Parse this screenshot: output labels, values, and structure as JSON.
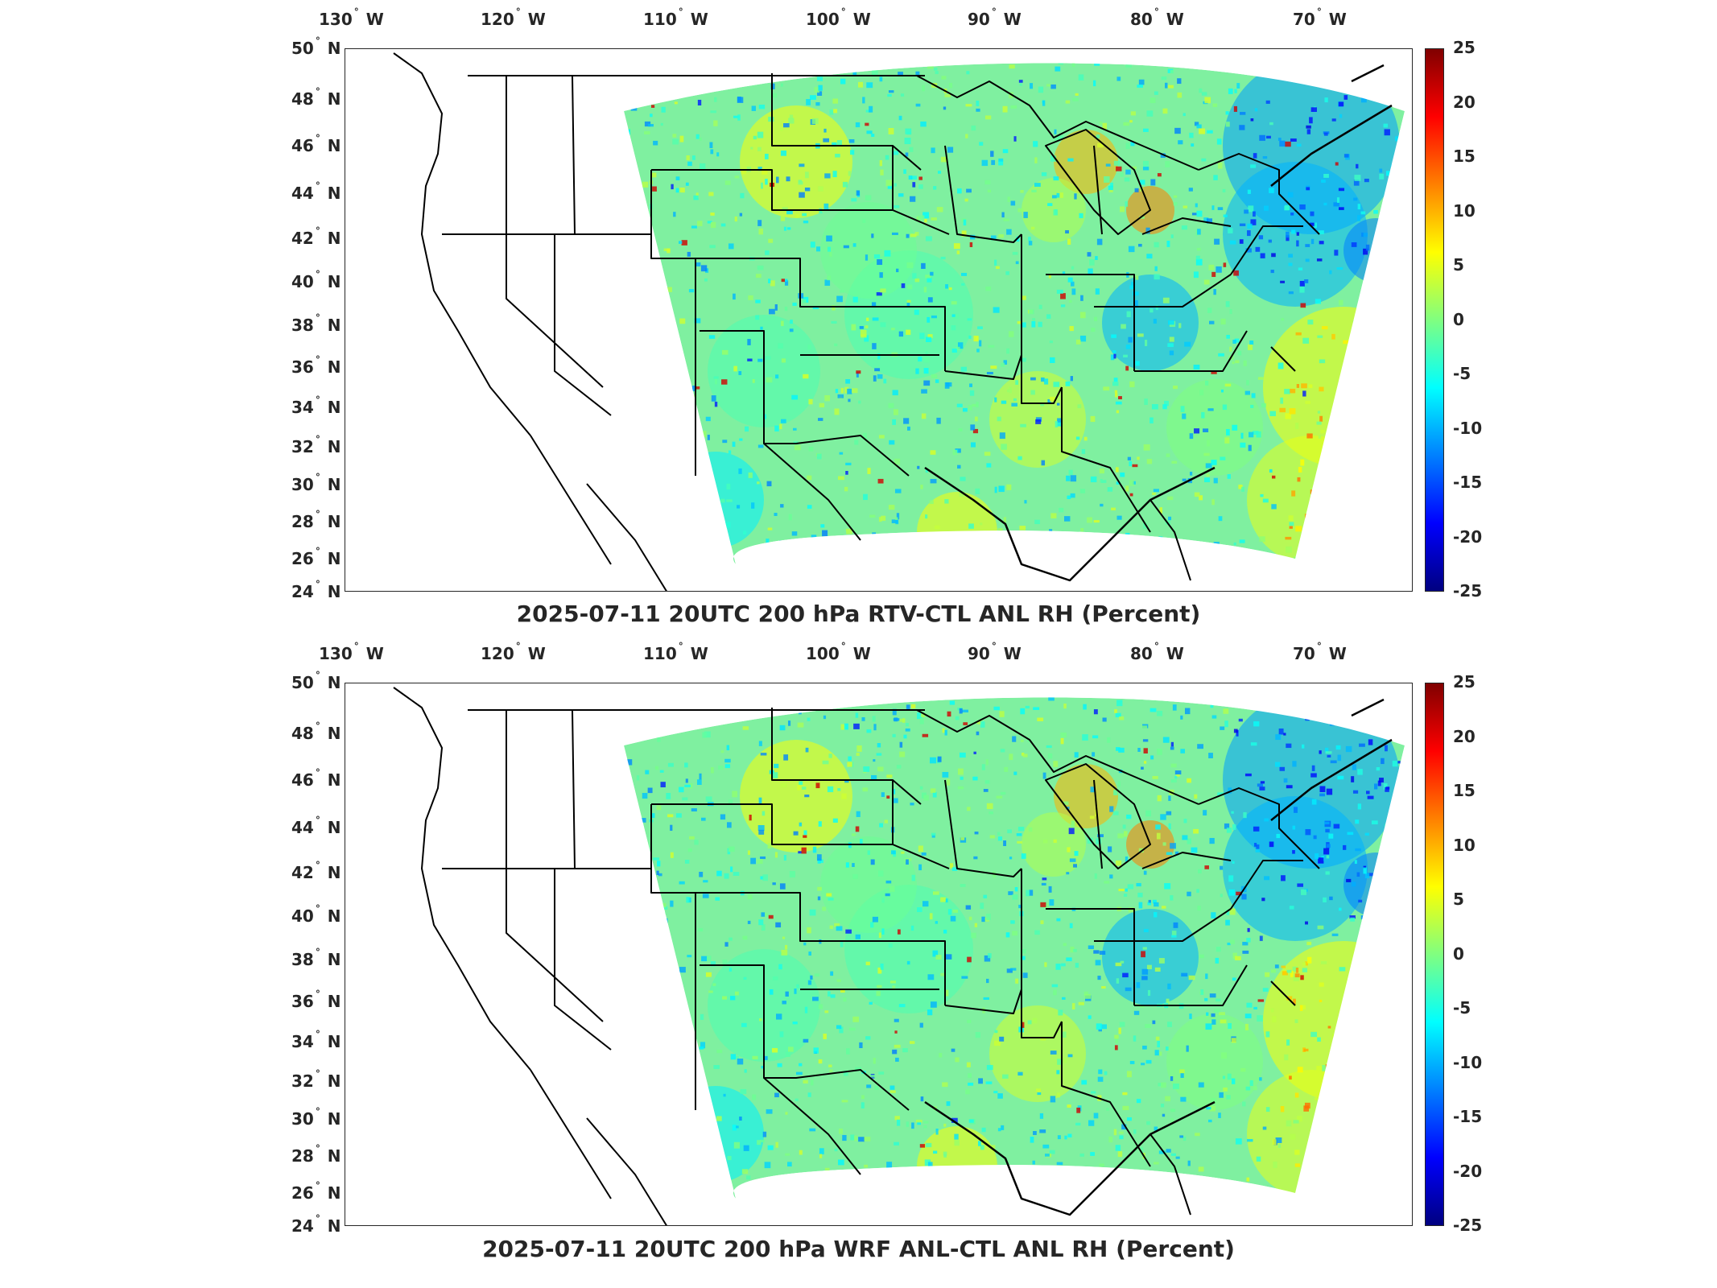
{
  "panels": [
    {
      "title": "2025-07-11 20UTC 200 hPa RTV-CTL ANL RH (Percent)"
    },
    {
      "title": "2025-07-11 20UTC 200 hPa WRF ANL-CTL ANL RH (Percent)"
    }
  ],
  "lon_labels": [
    {
      "deg": "130",
      "hem": "W"
    },
    {
      "deg": "120",
      "hem": "W"
    },
    {
      "deg": "110",
      "hem": "W"
    },
    {
      "deg": "100",
      "hem": "W"
    },
    {
      "deg": "90",
      "hem": "W"
    },
    {
      "deg": "80",
      "hem": "W"
    },
    {
      "deg": "70",
      "hem": "W"
    }
  ],
  "lat_labels": [
    {
      "deg": "50",
      "hem": "N"
    },
    {
      "deg": "48",
      "hem": "N"
    },
    {
      "deg": "46",
      "hem": "N"
    },
    {
      "deg": "44",
      "hem": "N"
    },
    {
      "deg": "42",
      "hem": "N"
    },
    {
      "deg": "40",
      "hem": "N"
    },
    {
      "deg": "38",
      "hem": "N"
    },
    {
      "deg": "36",
      "hem": "N"
    },
    {
      "deg": "34",
      "hem": "N"
    },
    {
      "deg": "32",
      "hem": "N"
    },
    {
      "deg": "30",
      "hem": "N"
    },
    {
      "deg": "28",
      "hem": "N"
    },
    {
      "deg": "26",
      "hem": "N"
    },
    {
      "deg": "24",
      "hem": "N"
    }
  ],
  "colorbar": {
    "ticks": [
      "25",
      "20",
      "15",
      "10",
      "5",
      "0",
      "-5",
      "-10",
      "-15",
      "-20",
      "-25"
    ],
    "min": -25,
    "max": 25,
    "colormap": "jet"
  }
}
